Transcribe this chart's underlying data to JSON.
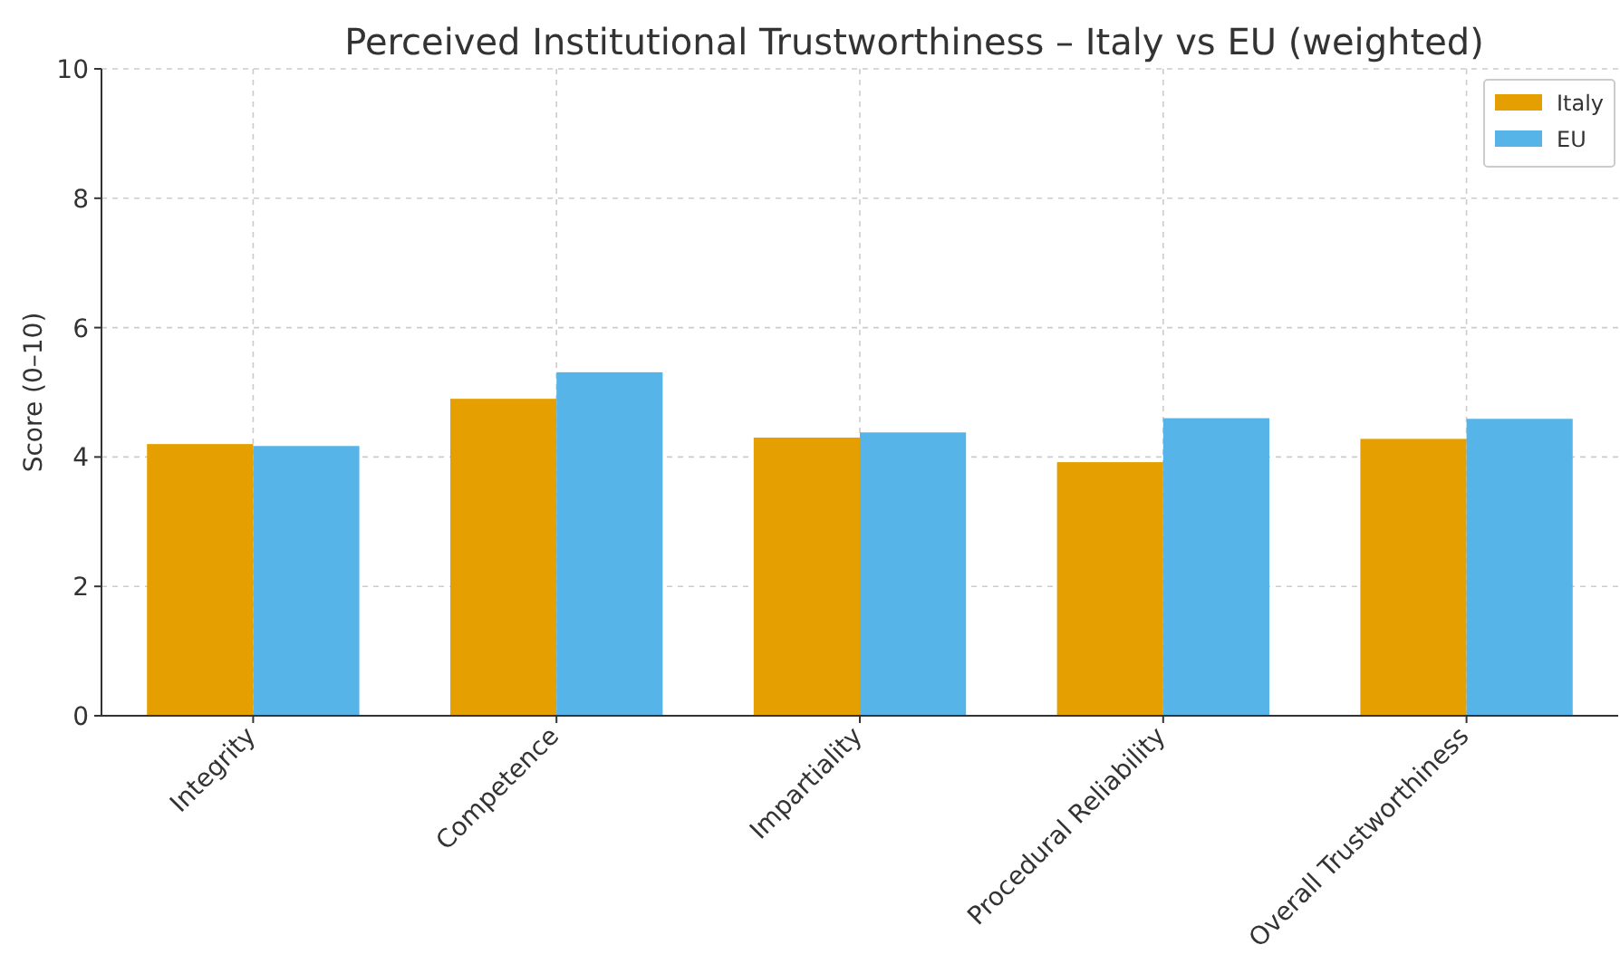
{
  "chart_data": {
    "type": "bar",
    "title": "Perceived Institutional Trustworthiness – Italy vs EU (weighted)",
    "ylabel": "Score (0–10)",
    "categories": [
      "Integrity",
      "Competence",
      "Impartiality",
      "Procedural Reliability",
      "Overall Trustworthiness"
    ],
    "series": [
      {
        "name": "Italy",
        "color": "#e69f00",
        "values": [
          4.2,
          4.9,
          4.3,
          3.92,
          4.28
        ]
      },
      {
        "name": "EU",
        "color": "#56b4e9",
        "values": [
          4.17,
          5.31,
          4.38,
          4.6,
          4.59
        ]
      }
    ],
    "ylim": [
      0,
      10
    ],
    "yticks": [
      0,
      2,
      4,
      6,
      8,
      10
    ],
    "grid": true,
    "legend": "top right"
  }
}
